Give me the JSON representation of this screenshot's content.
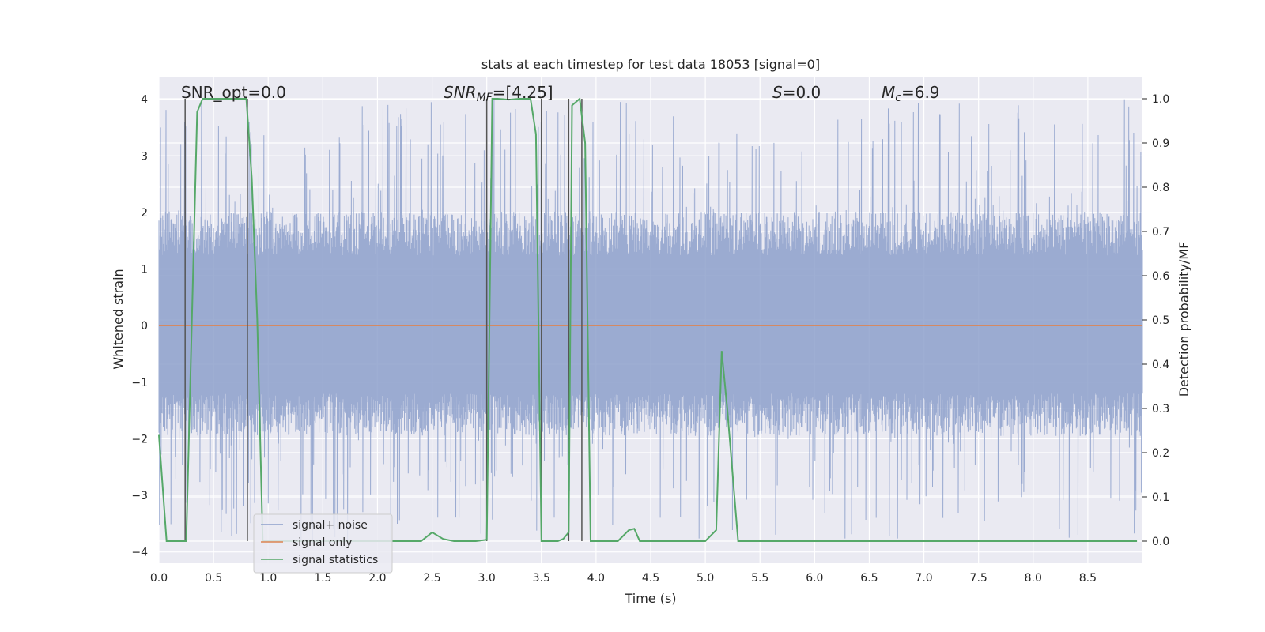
{
  "chart_data": {
    "type": "line",
    "title": "stats at each timestep for test data 18053 [signal=0]",
    "xlabel": "Time (s)",
    "ylabel": "Whitened strain",
    "ylabel_right": "Detection probability/MF",
    "xlim": [
      0.0,
      9.0
    ],
    "ylim": [
      -4.2,
      4.4
    ],
    "ylim_right": [
      -0.05,
      1.05
    ],
    "x_ticks": [
      "0.0",
      "0.5",
      "1.0",
      "1.5",
      "2.0",
      "2.5",
      "3.0",
      "3.5",
      "4.0",
      "4.5",
      "5.0",
      "5.5",
      "6.0",
      "6.5",
      "7.0",
      "7.5",
      "8.0",
      "8.5"
    ],
    "y_ticks": [
      "4",
      "3",
      "2",
      "1",
      "0",
      "−1",
      "−2",
      "−3",
      "−4"
    ],
    "y_right_ticks": [
      "1.0",
      "0.9",
      "0.8",
      "0.7",
      "0.6",
      "0.5",
      "0.4",
      "0.3",
      "0.2",
      "0.1",
      "0.0"
    ],
    "annotations": {
      "snr_opt": "SNR_opt=0.0",
      "snr_mf_main": "SNR",
      "snr_mf_sub": "MF",
      "snr_mf_value": "=[4.25]",
      "s_symbol": "S",
      "s_value": "=0.0",
      "mc_symbol": "M",
      "mc_sub": "c",
      "mc_value": "=6.9"
    },
    "noise_envelope_approx": {
      "positive_typical": 1.55,
      "negative_typical": -1.5,
      "max": 4.0,
      "min": -3.85
    },
    "series": [
      {
        "name": "signal+ noise",
        "color": "#8da0cb",
        "description": "dense whitened strain noise between about -3.8 and 4.0"
      },
      {
        "name": "signal only",
        "color": "#dd8452",
        "values_constant": 0.0
      },
      {
        "name": "signal statistics",
        "color": "#55a868",
        "axis": "right",
        "x": [
          0.0,
          0.07,
          0.15,
          0.25,
          0.35,
          0.4,
          0.5,
          0.6,
          0.7,
          0.8,
          0.85,
          0.9,
          0.95,
          1.0,
          1.5,
          2.0,
          2.4,
          2.5,
          2.6,
          2.7,
          2.9,
          3.0,
          3.05,
          3.1,
          3.2,
          3.3,
          3.4,
          3.45,
          3.5,
          3.55,
          3.6,
          3.65,
          3.7,
          3.75,
          3.78,
          3.85,
          3.9,
          3.95,
          4.0,
          4.05,
          4.15,
          4.2,
          4.3,
          4.35,
          4.4,
          4.45,
          4.5,
          5.0,
          5.1,
          5.15,
          5.2,
          5.3,
          5.35,
          5.4,
          5.6,
          6.0,
          7.0,
          8.0,
          8.5,
          8.95
        ],
        "values": [
          0.24,
          0.0,
          0.0,
          0.0,
          0.97,
          1.0,
          1.0,
          1.0,
          1.0,
          1.0,
          0.82,
          0.5,
          0.0,
          0.0,
          0.0,
          0.0,
          0.0,
          0.02,
          0.005,
          0.0,
          0.0,
          0.003,
          1.0,
          1.0,
          0.998,
          1.0,
          1.0,
          0.92,
          0.0,
          0.0,
          0.0,
          0.0,
          0.005,
          0.02,
          0.985,
          1.0,
          0.9,
          0.0,
          0.0,
          0.0,
          0.0,
          0.0,
          0.025,
          0.028,
          0.0,
          0.0,
          0.0,
          0.0,
          0.025,
          0.43,
          0.3,
          0.0,
          0.0,
          0.0,
          0.0,
          0.0,
          0.0,
          0.0,
          0.0,
          0.0
        ]
      }
    ],
    "vertical_markers": {
      "color": "#555555",
      "x": [
        0.24,
        0.81,
        3.0,
        3.5,
        3.75,
        3.87
      ]
    },
    "legend": {
      "placement": "lower-left",
      "entries": [
        {
          "label": "signal+ noise",
          "color": "#8da0cb"
        },
        {
          "label": "signal only",
          "color": "#dd8452"
        },
        {
          "label": "signal statistics",
          "color": "#55a868"
        }
      ]
    }
  }
}
